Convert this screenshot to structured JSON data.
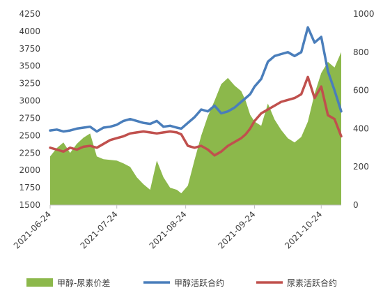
{
  "chart_data": {
    "type": "line",
    "title": "",
    "xlabel": "",
    "y_left": {
      "ylim": [
        1500,
        4250
      ],
      "ticks": [
        1500,
        1750,
        2000,
        2250,
        2500,
        2750,
        3000,
        3250,
        3500,
        3750,
        4000,
        4250
      ]
    },
    "y_right": {
      "ylim": [
        0,
        1000
      ],
      "ticks": [
        0,
        200,
        400,
        600,
        800,
        1000
      ]
    },
    "x_range": [
      "2021-06-24",
      "2021-11-02"
    ],
    "x_ticks": [
      "2021-06-24",
      "2021-07-24",
      "2021-08-24",
      "2021-09-24",
      "2021-10-24"
    ],
    "grid": false,
    "legend_position": "bottom",
    "series": [
      {
        "name": "甲醇-尿素价差",
        "type": "area",
        "axis": "left",
        "color": "#8cb84b",
        "points": [
          [
            "2021-06-24",
            2200
          ],
          [
            "2021-06-27",
            2320
          ],
          [
            "2021-06-30",
            2400
          ],
          [
            "2021-07-03",
            2250
          ],
          [
            "2021-07-06",
            2380
          ],
          [
            "2021-07-09",
            2470
          ],
          [
            "2021-07-12",
            2530
          ],
          [
            "2021-07-15",
            2200
          ],
          [
            "2021-07-18",
            2160
          ],
          [
            "2021-07-21",
            2150
          ],
          [
            "2021-07-24",
            2140
          ],
          [
            "2021-07-27",
            2100
          ],
          [
            "2021-07-30",
            2050
          ],
          [
            "2021-08-02",
            1900
          ],
          [
            "2021-08-05",
            1800
          ],
          [
            "2021-08-08",
            1720
          ],
          [
            "2021-08-11",
            2140
          ],
          [
            "2021-08-14",
            1900
          ],
          [
            "2021-08-17",
            1750
          ],
          [
            "2021-08-20",
            1720
          ],
          [
            "2021-08-22",
            1670
          ],
          [
            "2021-08-25",
            1780
          ],
          [
            "2021-08-28",
            2150
          ],
          [
            "2021-08-31",
            2500
          ],
          [
            "2021-09-03",
            2780
          ],
          [
            "2021-09-06",
            3000
          ],
          [
            "2021-09-09",
            3240
          ],
          [
            "2021-09-12",
            3330
          ],
          [
            "2021-09-15",
            3220
          ],
          [
            "2021-09-18",
            3140
          ],
          [
            "2021-09-20",
            3000
          ],
          [
            "2021-09-22",
            2800
          ],
          [
            "2021-09-24",
            2700
          ],
          [
            "2021-09-27",
            2640
          ],
          [
            "2021-09-30",
            2960
          ],
          [
            "2021-10-03",
            2730
          ],
          [
            "2021-10-06",
            2580
          ],
          [
            "2021-10-09",
            2460
          ],
          [
            "2021-10-12",
            2400
          ],
          [
            "2021-10-15",
            2480
          ],
          [
            "2021-10-18",
            2700
          ],
          [
            "2021-10-21",
            3100
          ],
          [
            "2021-10-24",
            3400
          ],
          [
            "2021-10-27",
            3560
          ],
          [
            "2021-10-30",
            3480
          ],
          [
            "2021-11-02",
            3700
          ]
        ]
      },
      {
        "name": "甲醇活跃合约",
        "type": "line",
        "axis": "right",
        "color": "#4a7ebb",
        "points": [
          [
            "2021-06-24",
            390
          ],
          [
            "2021-06-27",
            395
          ],
          [
            "2021-06-30",
            385
          ],
          [
            "2021-07-03",
            390
          ],
          [
            "2021-07-06",
            400
          ],
          [
            "2021-07-09",
            405
          ],
          [
            "2021-07-12",
            410
          ],
          [
            "2021-07-15",
            385
          ],
          [
            "2021-07-18",
            405
          ],
          [
            "2021-07-21",
            410
          ],
          [
            "2021-07-24",
            420
          ],
          [
            "2021-07-27",
            440
          ],
          [
            "2021-07-30",
            450
          ],
          [
            "2021-08-02",
            440
          ],
          [
            "2021-08-05",
            430
          ],
          [
            "2021-08-08",
            425
          ],
          [
            "2021-08-11",
            440
          ],
          [
            "2021-08-14",
            410
          ],
          [
            "2021-08-17",
            415
          ],
          [
            "2021-08-20",
            405
          ],
          [
            "2021-08-22",
            400
          ],
          [
            "2021-08-25",
            430
          ],
          [
            "2021-08-28",
            460
          ],
          [
            "2021-08-31",
            500
          ],
          [
            "2021-09-03",
            490
          ],
          [
            "2021-09-06",
            520
          ],
          [
            "2021-09-09",
            480
          ],
          [
            "2021-09-12",
            490
          ],
          [
            "2021-09-15",
            510
          ],
          [
            "2021-09-18",
            540
          ],
          [
            "2021-09-20",
            560
          ],
          [
            "2021-09-22",
            580
          ],
          [
            "2021-09-24",
            620
          ],
          [
            "2021-09-27",
            660
          ],
          [
            "2021-09-30",
            750
          ],
          [
            "2021-10-03",
            780
          ],
          [
            "2021-10-06",
            790
          ],
          [
            "2021-10-09",
            800
          ],
          [
            "2021-10-12",
            780
          ],
          [
            "2021-10-15",
            800
          ],
          [
            "2021-10-18",
            930
          ],
          [
            "2021-10-21",
            850
          ],
          [
            "2021-10-24",
            880
          ],
          [
            "2021-10-27",
            700
          ],
          [
            "2021-10-30",
            600
          ],
          [
            "2021-11-02",
            490
          ]
        ]
      },
      {
        "name": "尿素活跃合约",
        "type": "line",
        "axis": "right",
        "color": "#c0504d",
        "points": [
          [
            "2021-06-24",
            300
          ],
          [
            "2021-06-27",
            290
          ],
          [
            "2021-06-30",
            280
          ],
          [
            "2021-07-03",
            300
          ],
          [
            "2021-07-06",
            290
          ],
          [
            "2021-07-09",
            305
          ],
          [
            "2021-07-12",
            310
          ],
          [
            "2021-07-15",
            300
          ],
          [
            "2021-07-18",
            320
          ],
          [
            "2021-07-21",
            340
          ],
          [
            "2021-07-24",
            350
          ],
          [
            "2021-07-27",
            360
          ],
          [
            "2021-07-30",
            375
          ],
          [
            "2021-08-02",
            380
          ],
          [
            "2021-08-05",
            385
          ],
          [
            "2021-08-08",
            380
          ],
          [
            "2021-08-11",
            375
          ],
          [
            "2021-08-14",
            380
          ],
          [
            "2021-08-17",
            385
          ],
          [
            "2021-08-20",
            380
          ],
          [
            "2021-08-22",
            370
          ],
          [
            "2021-08-25",
            310
          ],
          [
            "2021-08-28",
            300
          ],
          [
            "2021-08-31",
            310
          ],
          [
            "2021-09-03",
            290
          ],
          [
            "2021-09-06",
            260
          ],
          [
            "2021-09-09",
            280
          ],
          [
            "2021-09-12",
            310
          ],
          [
            "2021-09-15",
            330
          ],
          [
            "2021-09-18",
            350
          ],
          [
            "2021-09-20",
            370
          ],
          [
            "2021-09-22",
            400
          ],
          [
            "2021-09-24",
            440
          ],
          [
            "2021-09-27",
            480
          ],
          [
            "2021-09-30",
            500
          ],
          [
            "2021-10-03",
            520
          ],
          [
            "2021-10-06",
            540
          ],
          [
            "2021-10-09",
            550
          ],
          [
            "2021-10-12",
            560
          ],
          [
            "2021-10-15",
            580
          ],
          [
            "2021-10-18",
            670
          ],
          [
            "2021-10-21",
            560
          ],
          [
            "2021-10-24",
            620
          ],
          [
            "2021-10-27",
            470
          ],
          [
            "2021-10-30",
            450
          ],
          [
            "2021-11-02",
            360
          ]
        ]
      }
    ]
  }
}
